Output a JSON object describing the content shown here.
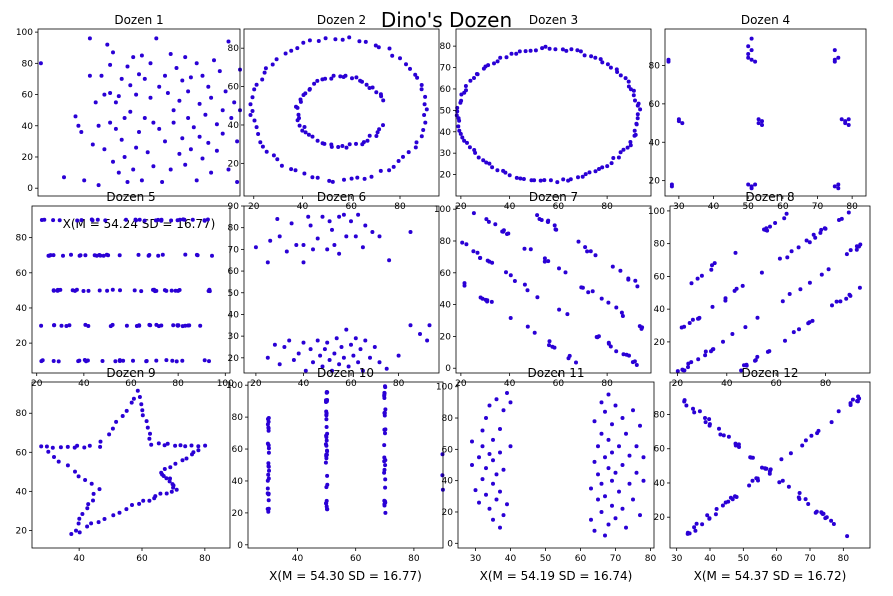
{
  "figure_title": "Dino's Dozen",
  "marker_color": "#2a00d5",
  "chart_data": [
    {
      "type": "scatter",
      "title": "Dozen 1",
      "xlabel": "",
      "xlim": [
        15,
        85
      ],
      "ylim": [
        -5,
        102
      ],
      "xticks": [],
      "yticks": [
        0,
        20,
        40,
        60,
        80,
        100
      ],
      "points": [
        [
          16,
          80
        ],
        [
          24,
          7
        ],
        [
          28,
          46
        ],
        [
          29,
          40
        ],
        [
          30,
          36
        ],
        [
          31,
          5
        ],
        [
          33,
          96
        ],
        [
          33,
          72
        ],
        [
          34,
          28
        ],
        [
          35,
          55
        ],
        [
          36,
          2
        ],
        [
          36,
          40
        ],
        [
          37,
          72
        ],
        [
          38,
          60
        ],
        [
          38,
          25
        ],
        [
          39,
          92
        ],
        [
          40,
          42
        ],
        [
          40,
          79
        ],
        [
          40,
          61
        ],
        [
          41,
          17
        ],
        [
          41,
          87
        ],
        [
          42,
          55
        ],
        [
          42,
          38
        ],
        [
          43,
          59
        ],
        [
          43,
          10
        ],
        [
          44,
          70
        ],
        [
          44,
          31
        ],
        [
          45,
          45
        ],
        [
          45,
          20
        ],
        [
          46,
          78
        ],
        [
          46,
          4
        ],
        [
          47,
          49
        ],
        [
          47,
          66
        ],
        [
          48,
          12
        ],
        [
          48,
          84
        ],
        [
          49,
          60
        ],
        [
          49,
          26
        ],
        [
          50,
          73
        ],
        [
          50,
          36
        ],
        [
          51,
          85
        ],
        [
          51,
          5
        ],
        [
          52,
          45
        ],
        [
          52,
          70
        ],
        [
          53,
          23
        ],
        [
          54,
          80
        ],
        [
          54,
          58
        ],
        [
          55,
          14
        ],
        [
          55,
          42
        ],
        [
          56,
          96
        ],
        [
          57,
          38
        ],
        [
          57,
          65
        ],
        [
          58,
          4
        ],
        [
          59,
          72
        ],
        [
          59,
          30
        ],
        [
          60,
          61
        ],
        [
          61,
          86
        ],
        [
          61,
          12
        ],
        [
          62,
          50
        ],
        [
          62,
          42
        ],
        [
          63,
          77
        ],
        [
          64,
          22
        ],
        [
          64,
          56
        ],
        [
          65,
          69
        ],
        [
          65,
          32
        ],
        [
          66,
          84
        ],
        [
          66,
          15
        ],
        [
          67,
          62
        ],
        [
          67,
          45
        ],
        [
          68,
          25
        ],
        [
          68,
          71
        ],
        [
          69,
          39
        ],
        [
          70,
          80
        ],
        [
          70,
          5
        ],
        [
          71,
          54
        ],
        [
          71,
          33
        ],
        [
          72,
          72
        ],
        [
          72,
          19
        ],
        [
          73,
          47
        ],
        [
          74,
          65
        ],
        [
          74,
          29
        ],
        [
          75,
          58
        ],
        [
          75,
          10
        ],
        [
          76,
          82
        ],
        [
          77,
          41
        ],
        [
          77,
          24
        ],
        [
          78,
          75
        ],
        [
          79,
          50
        ],
        [
          79,
          35
        ],
        [
          80,
          62
        ],
        [
          81,
          12
        ],
        [
          81,
          94
        ],
        [
          82,
          45
        ],
        [
          83,
          55
        ],
        [
          84,
          30
        ],
        [
          84,
          4
        ],
        [
          85,
          76
        ],
        [
          85,
          50
        ]
      ]
    },
    {
      "type": "scatter",
      "title": "Dozen 2",
      "xlabel": "",
      "xlim": [
        16,
        96
      ],
      "ylim": [
        3,
        90
      ],
      "xticks": [
        20,
        40,
        60,
        80
      ],
      "yticks": [
        20,
        40,
        60,
        80
      ],
      "points": []
    },
    {
      "type": "scatter",
      "title": "Dozen 3",
      "xlabel": "",
      "xlim": [
        18,
        98
      ],
      "ylim": [
        10,
        88
      ],
      "xticks": [
        20,
        40,
        60,
        80
      ],
      "yticks": [
        20,
        30,
        40,
        50,
        60,
        70,
        80
      ],
      "points": []
    },
    {
      "type": "scatter",
      "title": "Dozen 4",
      "xlabel": "",
      "xlim": [
        26,
        84
      ],
      "ylim": [
        12,
        99
      ],
      "xticks": [
        30,
        40,
        50,
        60,
        70,
        80
      ],
      "yticks": [
        20,
        40,
        60,
        80
      ],
      "points": [
        [
          27,
          83
        ],
        [
          27,
          82
        ],
        [
          28,
          17
        ],
        [
          28,
          18
        ],
        [
          30,
          52
        ],
        [
          30,
          51
        ],
        [
          31,
          50
        ],
        [
          50,
          90
        ],
        [
          50,
          86
        ],
        [
          51,
          83
        ],
        [
          51,
          94
        ],
        [
          50,
          84
        ],
        [
          51,
          88
        ],
        [
          52,
          82
        ],
        [
          51,
          17
        ],
        [
          52,
          18
        ],
        [
          50,
          18
        ],
        [
          51,
          16
        ],
        [
          53,
          52
        ],
        [
          53,
          50
        ],
        [
          54,
          51
        ],
        [
          54,
          49
        ],
        [
          75,
          83
        ],
        [
          75,
          88
        ],
        [
          76,
          84
        ],
        [
          75,
          82
        ],
        [
          76,
          18
        ],
        [
          75,
          17
        ],
        [
          76,
          16
        ],
        [
          77,
          52
        ],
        [
          78,
          51
        ],
        [
          78,
          50
        ],
        [
          79,
          52
        ],
        [
          79,
          49
        ]
      ]
    },
    {
      "type": "scatter",
      "title": "Dozen 5",
      "xlabel": "",
      "xlim": [
        18,
        102
      ],
      "ylim": [
        3,
        98
      ],
      "xticks": [
        20,
        40,
        60,
        80,
        100
      ],
      "yticks": [
        20,
        40,
        60,
        80
      ],
      "points": []
    },
    {
      "type": "scatter",
      "title": "Dozen 6",
      "xlabel": "",
      "xlim": [
        15,
        97
      ],
      "ylim": [
        13,
        90
      ],
      "xticks": [
        20,
        40,
        60,
        80
      ],
      "yticks": [
        20,
        30,
        40,
        50,
        60,
        70,
        80,
        90
      ],
      "points": [
        [
          20,
          71
        ],
        [
          25,
          64
        ],
        [
          26,
          74
        ],
        [
          29,
          84
        ],
        [
          30,
          76
        ],
        [
          33,
          69
        ],
        [
          35,
          82
        ],
        [
          37,
          72
        ],
        [
          40,
          72
        ],
        [
          40,
          64
        ],
        [
          42,
          85
        ],
        [
          43,
          81
        ],
        [
          44,
          70
        ],
        [
          46,
          75
        ],
        [
          48,
          85
        ],
        [
          50,
          70
        ],
        [
          51,
          83
        ],
        [
          52,
          79
        ],
        [
          53,
          72
        ],
        [
          55,
          85
        ],
        [
          55,
          68
        ],
        [
          57,
          86
        ],
        [
          58,
          76
        ],
        [
          60,
          83
        ],
        [
          62,
          76
        ],
        [
          63,
          86
        ],
        [
          65,
          71
        ],
        [
          66,
          81
        ],
        [
          69,
          78
        ],
        [
          72,
          76
        ],
        [
          76,
          65
        ],
        [
          85,
          78
        ],
        [
          25,
          20
        ],
        [
          28,
          26
        ],
        [
          30,
          17
        ],
        [
          32,
          25
        ],
        [
          34,
          28
        ],
        [
          36,
          19
        ],
        [
          38,
          22
        ],
        [
          40,
          27
        ],
        [
          41,
          14
        ],
        [
          43,
          24
        ],
        [
          44,
          18
        ],
        [
          46,
          28
        ],
        [
          47,
          21
        ],
        [
          48,
          16
        ],
        [
          49,
          24
        ],
        [
          50,
          27
        ],
        [
          51,
          19
        ],
        [
          52,
          14
        ],
        [
          53,
          22
        ],
        [
          54,
          29
        ],
        [
          55,
          17
        ],
        [
          56,
          25
        ],
        [
          57,
          20
        ],
        [
          58,
          33
        ],
        [
          59,
          16
        ],
        [
          60,
          26
        ],
        [
          61,
          21
        ],
        [
          62,
          29
        ],
        [
          63,
          18
        ],
        [
          64,
          24
        ],
        [
          65,
          14
        ],
        [
          66,
          28
        ],
        [
          68,
          20
        ],
        [
          70,
          25
        ],
        [
          72,
          18
        ],
        [
          75,
          15
        ],
        [
          80,
          21
        ],
        [
          85,
          35
        ],
        [
          89,
          31
        ],
        [
          92,
          28
        ],
        [
          93,
          35
        ]
      ]
    },
    {
      "type": "scatter",
      "title": "Dozen 7",
      "xlabel": "",
      "xlim": [
        18,
        98
      ],
      "ylim": [
        -3,
        102
      ],
      "xticks": [
        20,
        40,
        60,
        80
      ],
      "yticks": [
        0,
        20,
        40,
        60,
        80,
        100
      ],
      "points": []
    },
    {
      "type": "scatter",
      "title": "Dozen 8",
      "xlabel": "",
      "xlim": [
        17,
        98
      ],
      "ylim": [
        1,
        103
      ],
      "xticks": [
        20,
        40,
        60,
        80
      ],
      "yticks": [
        20,
        40,
        60,
        80,
        100
      ],
      "points": []
    },
    {
      "type": "scatter",
      "title": "Dozen 9",
      "xlabel": "",
      "xlim": [
        25,
        88
      ],
      "ylim": [
        11,
        96
      ],
      "xticks": [
        40,
        60,
        80
      ],
      "yticks": [
        20,
        40,
        60,
        80
      ],
      "points": []
    },
    {
      "type": "scatter",
      "title": "Dozen 10",
      "xlabel": "X(M = 54.30 SD = 16.77)",
      "xlim": [
        23,
        90
      ],
      "ylim": [
        -2,
        102
      ],
      "xticks": [
        40,
        60,
        80
      ],
      "yticks": [
        0,
        20,
        40,
        60,
        80,
        100
      ],
      "points": []
    },
    {
      "type": "scatter",
      "title": "Dozen 11",
      "xlabel": "X(M = 54.19 SD = 16.74)",
      "xlim": [
        25,
        81
      ],
      "ylim": [
        -3,
        103
      ],
      "xticks": [
        30,
        40,
        50,
        60,
        70,
        80
      ],
      "yticks": [
        0,
        20,
        40,
        60,
        80,
        100
      ],
      "points": [
        [
          29,
          65
        ],
        [
          29,
          50
        ],
        [
          30,
          34
        ],
        [
          31,
          55
        ],
        [
          31,
          26
        ],
        [
          32,
          72
        ],
        [
          32,
          41
        ],
        [
          32,
          62
        ],
        [
          33,
          31
        ],
        [
          33,
          80
        ],
        [
          33,
          48
        ],
        [
          34,
          57
        ],
        [
          34,
          22
        ],
        [
          34,
          88
        ],
        [
          35,
          38
        ],
        [
          35,
          66
        ],
        [
          35,
          15
        ],
        [
          35,
          53
        ],
        [
          36,
          92
        ],
        [
          36,
          28
        ],
        [
          36,
          44
        ],
        [
          37,
          73
        ],
        [
          37,
          10
        ],
        [
          37,
          58
        ],
        [
          37,
          33
        ],
        [
          38,
          85
        ],
        [
          38,
          18
        ],
        [
          38,
          47
        ],
        [
          39,
          96
        ],
        [
          39,
          25
        ],
        [
          40,
          90
        ],
        [
          40,
          62
        ],
        [
          63,
          15
        ],
        [
          63,
          35
        ],
        [
          64,
          52
        ],
        [
          64,
          8
        ],
        [
          64,
          78
        ],
        [
          65,
          28
        ],
        [
          65,
          44
        ],
        [
          65,
          62
        ],
        [
          66,
          90
        ],
        [
          66,
          20
        ],
        [
          66,
          70
        ],
        [
          66,
          38
        ],
        [
          67,
          5
        ],
        [
          67,
          55
        ],
        [
          67,
          84
        ],
        [
          67,
          30
        ],
        [
          68,
          48
        ],
        [
          68,
          12
        ],
        [
          68,
          66
        ],
        [
          68,
          95
        ],
        [
          69,
          40
        ],
        [
          69,
          24
        ],
        [
          69,
          58
        ],
        [
          69,
          76
        ],
        [
          70,
          16
        ],
        [
          70,
          45
        ],
        [
          70,
          88
        ],
        [
          71,
          33
        ],
        [
          71,
          62
        ],
        [
          72,
          22
        ],
        [
          72,
          80
        ],
        [
          72,
          50
        ],
        [
          73,
          10
        ],
        [
          73,
          70
        ],
        [
          74,
          38
        ],
        [
          74,
          56
        ],
        [
          75,
          28
        ],
        [
          75,
          85
        ],
        [
          76,
          45
        ],
        [
          76,
          62
        ],
        [
          77,
          18
        ],
        [
          77,
          75
        ],
        [
          78,
          40
        ],
        [
          78,
          55
        ]
      ]
    },
    {
      "type": "scatter",
      "title": "Dozen 12",
      "xlabel": "X(M = 54.37 SD = 16.72)",
      "xlim": [
        28,
        88
      ],
      "ylim": [
        2,
        99
      ],
      "xticks": [
        30,
        40,
        50,
        60,
        70,
        80
      ],
      "yticks": [
        20,
        40,
        60,
        80
      ],
      "points": []
    }
  ],
  "panel0_xlabel": "X(M = 54.24 SD = 16.77)"
}
